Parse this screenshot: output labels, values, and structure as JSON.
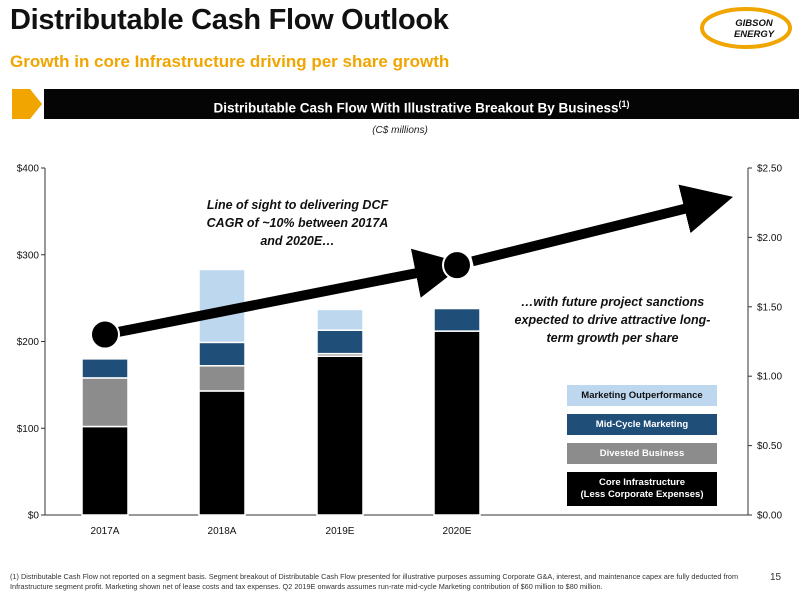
{
  "header": {
    "title": "Distributable Cash Flow Outlook",
    "subtitle": "Growth in core Infrastructure driving per share growth",
    "logo_text_1": "GIBSON",
    "logo_text_2": "ENERGY"
  },
  "banner": {
    "text": "Distributable Cash Flow With Illustrative Breakout By Business",
    "sup": "(1)"
  },
  "units_note": "(C$ millions)",
  "annotations": {
    "left": "Line of sight to delivering DCF CAGR of ~10% between 2017A and 2020E…",
    "right": "…with future project sanctions expected to drive attractive long-term growth per share"
  },
  "footnote": "(1) Distributable Cash Flow not reported on a segment basis. Segment breakout of Distributable Cash Flow presented for illustrative purposes assuming Corporate G&A, interest, and maintenance capex are fully deducted from Infrastructure segment profit. Marketing shown net of lease costs and tax expenses. Q2 2019E onwards assumes run-rate mid-cycle Marketing contribution of $60 million to $80 million.",
  "page_number": "15",
  "colors": {
    "accent": "#f0a500",
    "core": "#000000",
    "divested": "#8c8c8c",
    "midcycle": "#1f4e79",
    "outperformance": "#bdd7ee"
  },
  "chart_data": {
    "type": "bar",
    "stacked": true,
    "categories": [
      "2017A",
      "2018A",
      "2019E",
      "2020E"
    ],
    "series": [
      {
        "name": "Core Infrastructure (Less Corporate Expenses)",
        "values": [
          102,
          143,
          183,
          212
        ],
        "color": "#000000"
      },
      {
        "name": "Divested Business",
        "values": [
          56,
          29,
          3,
          0
        ],
        "color": "#8c8c8c"
      },
      {
        "name": "Mid-Cycle Marketing",
        "values": [
          22,
          27,
          27,
          26
        ],
        "color": "#1f4e79"
      },
      {
        "name": "Marketing Outperformance",
        "values": [
          0,
          84,
          24,
          0
        ],
        "color": "#bdd7ee"
      }
    ],
    "legend_labels": [
      "Marketing Outperformance",
      "Mid-Cycle Marketing",
      "Divested Business",
      "Core Infrastructure",
      "(Less Corporate Expenses)"
    ],
    "legend_position": "right",
    "y_left": {
      "min": 0,
      "max": 400,
      "ticks": [
        "$0",
        "$100",
        "$200",
        "$300",
        "$400"
      ]
    },
    "y_right": {
      "min": 0,
      "max": 2.5,
      "ticks": [
        "$0.00",
        "$0.50",
        "$1.00",
        "$1.50",
        "$2.00",
        "$2.50"
      ]
    },
    "per_share_markers": [
      {
        "x": "2017A",
        "value": 1.3
      },
      {
        "x": "2020E",
        "value": 1.8
      }
    ],
    "grid": false
  }
}
